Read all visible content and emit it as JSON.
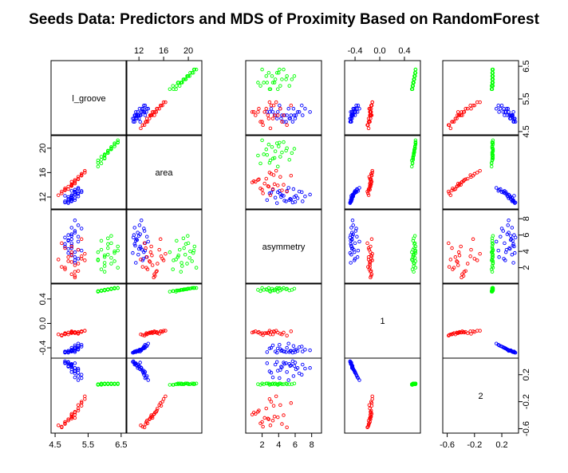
{
  "chart_data": {
    "type": "scatter",
    "subtype": "scatterplot-matrix",
    "title": "Seeds Data: Predictors and MDS of Proximity Based on RandomForest",
    "variables": [
      "l_groove",
      "area",
      "asymmetry",
      "1",
      "2"
    ],
    "ranges": [
      [
        4.45,
        6.6
      ],
      [
        10.3,
        21.8
      ],
      [
        0.3,
        8.9
      ],
      [
        -0.53,
        0.62
      ],
      [
        -0.63,
        0.41
      ]
    ],
    "ticks": [
      [
        4.5,
        5.5,
        6.5
      ],
      [
        12,
        16,
        20
      ],
      [
        2,
        4,
        6,
        8
      ],
      [
        -0.4,
        0.0,
        0.4
      ],
      [
        -0.6,
        -0.2,
        0.2
      ]
    ],
    "tick_labels": [
      [
        "4.5",
        "5.5",
        "6.5"
      ],
      [
        "12",
        "16",
        "20"
      ],
      [
        "2",
        "4",
        "6",
        "8"
      ],
      [
        "-0.4",
        "0.0",
        "0.4"
      ],
      [
        "-0.6",
        "-0.2",
        "0.2"
      ]
    ],
    "series": [
      {
        "color": "#0000ff",
        "points": [
          [
            4.8,
            12.2,
            4.6,
            -0.46,
            0.38
          ],
          [
            4.9,
            11.5,
            5.3,
            -0.47,
            0.36
          ],
          [
            5.0,
            12.0,
            5.9,
            -0.44,
            0.33
          ],
          [
            5.1,
            11.8,
            6.3,
            -0.45,
            0.3
          ],
          [
            5.2,
            12.5,
            4.2,
            -0.42,
            0.27
          ],
          [
            5.0,
            13.0,
            5.0,
            -0.4,
            0.24
          ],
          [
            4.9,
            11.0,
            3.8,
            -0.48,
            0.39
          ],
          [
            5.3,
            12.8,
            6.8,
            -0.38,
            0.2
          ],
          [
            5.1,
            13.2,
            3.3,
            -0.36,
            0.16
          ],
          [
            4.8,
            11.3,
            4.9,
            -0.47,
            0.37
          ],
          [
            5.2,
            12.1,
            7.2,
            -0.43,
            0.29
          ],
          [
            5.0,
            11.6,
            5.5,
            -0.45,
            0.34
          ],
          [
            5.1,
            12.6,
            2.9,
            -0.41,
            0.25
          ],
          [
            5.0,
            12.3,
            4.4,
            -0.44,
            0.31
          ],
          [
            4.9,
            11.2,
            6.0,
            -0.47,
            0.38
          ],
          [
            5.2,
            13.5,
            5.2,
            -0.33,
            0.12
          ],
          [
            5.0,
            11.9,
            3.6,
            -0.46,
            0.35
          ],
          [
            5.1,
            12.9,
            6.5,
            -0.39,
            0.22
          ],
          [
            4.8,
            11.1,
            5.7,
            -0.48,
            0.4
          ],
          [
            5.3,
            13.0,
            4.1,
            -0.35,
            0.15
          ],
          [
            5.1,
            12.4,
            7.8,
            -0.44,
            0.3
          ],
          [
            5.0,
            11.4,
            4.7,
            -0.46,
            0.36
          ],
          [
            5.2,
            12.7,
            3.1,
            -0.4,
            0.23
          ],
          [
            4.9,
            11.7,
            5.4,
            -0.45,
            0.33
          ],
          [
            5.0,
            12.2,
            6.1,
            -0.43,
            0.28
          ],
          [
            5.1,
            11.5,
            2.6,
            -0.47,
            0.37
          ],
          [
            5.2,
            13.3,
            5.8,
            -0.37,
            0.18
          ],
          [
            4.9,
            12.0,
            4.3,
            -0.45,
            0.32
          ],
          [
            5.0,
            11.3,
            6.9,
            -0.46,
            0.35
          ],
          [
            5.1,
            12.8,
            3.9,
            -0.41,
            0.26
          ]
        ]
      },
      {
        "color": "#ff0000",
        "points": [
          [
            4.6,
            12.3,
            3.0,
            -0.18,
            -0.55
          ],
          [
            4.8,
            13.2,
            2.0,
            -0.16,
            -0.5
          ],
          [
            5.0,
            14.1,
            3.5,
            -0.14,
            -0.42
          ],
          [
            5.1,
            14.8,
            1.5,
            -0.15,
            -0.35
          ],
          [
            5.2,
            15.3,
            4.2,
            -0.17,
            -0.25
          ],
          [
            4.9,
            13.7,
            2.8,
            -0.15,
            -0.46
          ],
          [
            5.0,
            14.5,
            1.2,
            -0.13,
            -0.38
          ],
          [
            5.3,
            15.8,
            3.1,
            -0.14,
            -0.2
          ],
          [
            4.7,
            12.9,
            5.0,
            -0.2,
            -0.58
          ],
          [
            5.1,
            14.2,
            2.3,
            -0.16,
            -0.44
          ],
          [
            5.4,
            16.3,
            3.7,
            -0.12,
            -0.12
          ],
          [
            4.8,
            13.4,
            1.8,
            -0.17,
            -0.52
          ],
          [
            5.0,
            14.0,
            4.6,
            -0.15,
            -0.4
          ],
          [
            5.2,
            15.0,
            2.5,
            -0.16,
            -0.3
          ],
          [
            4.9,
            13.3,
            3.3,
            -0.18,
            -0.48
          ],
          [
            5.1,
            14.6,
            1.0,
            -0.14,
            -0.36
          ],
          [
            5.3,
            15.5,
            5.5,
            -0.13,
            -0.22
          ],
          [
            4.7,
            12.6,
            2.1,
            -0.19,
            -0.57
          ],
          [
            5.0,
            13.9,
            3.9,
            -0.15,
            -0.43
          ],
          [
            5.2,
            14.9,
            1.6,
            -0.14,
            -0.33
          ],
          [
            5.4,
            16.0,
            2.9,
            -0.12,
            -0.16
          ],
          [
            4.8,
            13.1,
            4.4,
            -0.18,
            -0.53
          ],
          [
            5.1,
            14.4,
            0.8,
            -0.15,
            -0.39
          ],
          [
            5.0,
            13.8,
            2.7,
            -0.16,
            -0.45
          ],
          [
            5.3,
            15.6,
            3.4,
            -0.13,
            -0.26
          ]
        ]
      },
      {
        "color": "#00ff00",
        "points": [
          [
            5.8,
            18.0,
            3.0,
            0.52,
            0.06
          ],
          [
            5.9,
            18.6,
            4.2,
            0.54,
            0.07
          ],
          [
            6.0,
            19.0,
            2.2,
            0.55,
            0.06
          ],
          [
            6.1,
            19.5,
            3.6,
            0.56,
            0.07
          ],
          [
            6.2,
            20.0,
            5.0,
            0.57,
            0.06
          ],
          [
            6.3,
            20.6,
            2.8,
            0.58,
            0.07
          ],
          [
            6.4,
            21.0,
            4.6,
            0.58,
            0.06
          ],
          [
            5.9,
            17.5,
            1.8,
            0.53,
            0.05
          ],
          [
            6.0,
            18.3,
            3.3,
            0.54,
            0.07
          ],
          [
            6.1,
            19.2,
            5.6,
            0.55,
            0.06
          ],
          [
            6.2,
            19.8,
            2.5,
            0.56,
            0.07
          ],
          [
            6.3,
            20.3,
            4.0,
            0.57,
            0.06
          ],
          [
            5.8,
            17.0,
            3.9,
            0.52,
            0.05
          ],
          [
            6.0,
            18.8,
            1.5,
            0.55,
            0.06
          ],
          [
            6.1,
            19.6,
            4.9,
            0.56,
            0.07
          ],
          [
            6.2,
            20.2,
            3.2,
            0.57,
            0.06
          ],
          [
            6.4,
            21.3,
            2.0,
            0.58,
            0.07
          ],
          [
            5.9,
            18.1,
            5.3,
            0.54,
            0.06
          ],
          [
            6.0,
            18.9,
            2.6,
            0.55,
            0.07
          ],
          [
            6.3,
            20.8,
            3.8,
            0.58,
            0.06
          ],
          [
            6.1,
            19.3,
            4.4,
            0.56,
            0.06
          ],
          [
            5.8,
            17.6,
            2.9,
            0.53,
            0.05
          ],
          [
            6.2,
            19.9,
            5.9,
            0.57,
            0.07
          ],
          [
            6.0,
            18.4,
            3.5,
            0.54,
            0.06
          ],
          [
            6.4,
            20.9,
            4.1,
            0.58,
            0.07
          ]
        ]
      }
    ]
  }
}
